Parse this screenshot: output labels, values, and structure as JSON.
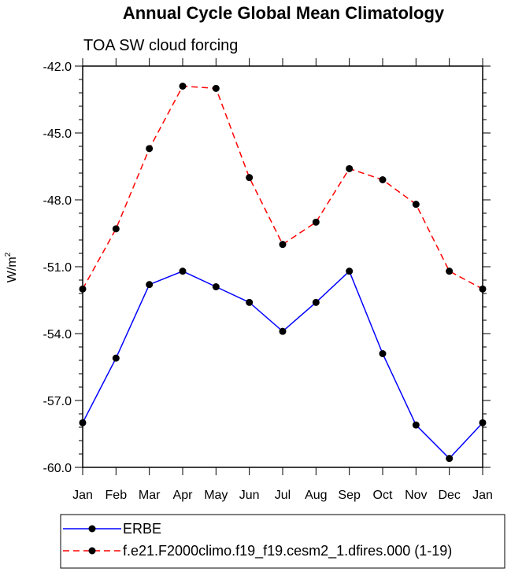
{
  "chart_data": {
    "type": "line",
    "title": "Annual Cycle Global Mean Climatology",
    "subtitle": "TOA SW cloud forcing",
    "xlabel": "",
    "ylabel_base": "W/m",
    "ylabel_sup": "2",
    "categories": [
      "Jan",
      "Feb",
      "Mar",
      "Apr",
      "May",
      "Jun",
      "Jul",
      "Aug",
      "Sep",
      "Oct",
      "Nov",
      "Dec",
      "Jan"
    ],
    "ylim": [
      -60.0,
      -42.0
    ],
    "yticks": [
      "-42.0",
      "-45.0",
      "-48.0",
      "-51.0",
      "-54.0",
      "-57.0",
      "-60.0"
    ],
    "ytick_values": [
      -42,
      -45,
      -48,
      -51,
      -54,
      -57,
      -60
    ],
    "grid": false,
    "legend_position": "bottom",
    "series": [
      {
        "name": "ERBE",
        "color": "#0000ff",
        "dash": "solid",
        "values": [
          -58.0,
          -55.1,
          -51.8,
          -51.2,
          -51.9,
          -52.6,
          -53.9,
          -52.6,
          -51.2,
          -54.9,
          -58.1,
          -59.6,
          -58.0
        ]
      },
      {
        "name": "f.e21.F2000climo.f19_f19.cesm2_1.dfires.000 (1-19)",
        "color": "#ff0000",
        "dash": "dashed",
        "values": [
          -52.0,
          -49.3,
          -45.7,
          -42.9,
          -43.0,
          -47.0,
          -50.0,
          -49.0,
          -46.6,
          -47.1,
          -48.2,
          -51.2,
          -52.0
        ]
      }
    ]
  }
}
